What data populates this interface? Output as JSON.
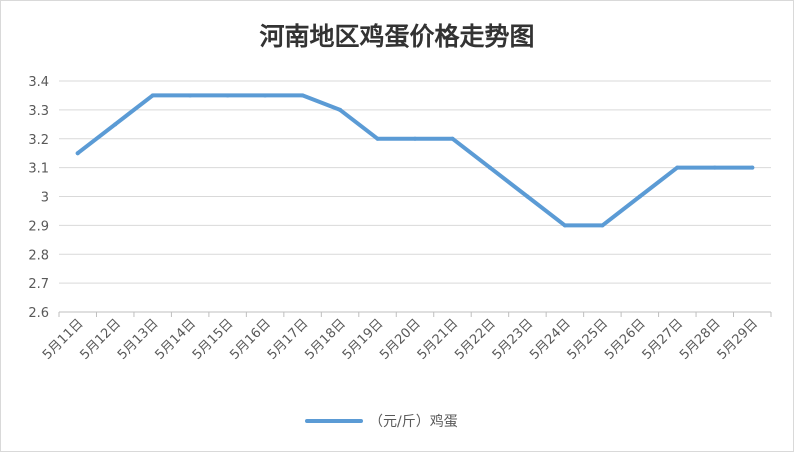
{
  "colors": {
    "series": "#5b9bd5",
    "grid": "#d9d9d9",
    "text": "#595959",
    "title": "#333333"
  },
  "chart_data": {
    "type": "line",
    "title": "河南地区鸡蛋价格走势图",
    "xlabel": "",
    "ylabel": "",
    "ylim": [
      2.6,
      3.4
    ],
    "yticks": [
      "2.6",
      "2.7",
      "2.8",
      "2.9",
      "3",
      "3.1",
      "3.2",
      "3.3",
      "3.4"
    ],
    "grid": true,
    "legend_position": "bottom",
    "categories": [
      "5月11日",
      "5月12日",
      "5月13日",
      "5月14日",
      "5月15日",
      "5月16日",
      "5月17日",
      "5月18日",
      "5月19日",
      "5月20日",
      "5月21日",
      "5月22日",
      "5月23日",
      "5月24日",
      "5月25日",
      "5月26日",
      "5月27日",
      "5月28日",
      "5月29日"
    ],
    "series": [
      {
        "name": "（元/斤）鸡蛋",
        "values": [
          3.15,
          3.25,
          3.35,
          3.35,
          3.35,
          3.35,
          3.35,
          3.3,
          3.2,
          3.2,
          3.2,
          3.1,
          3.0,
          2.9,
          2.9,
          3.0,
          3.1,
          3.1,
          3.1
        ]
      }
    ]
  }
}
